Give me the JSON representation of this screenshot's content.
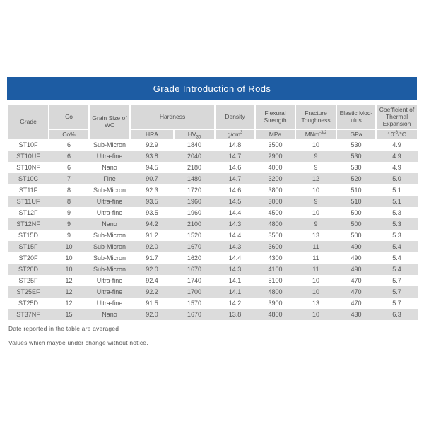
{
  "title": "Grade Introduction of Rods",
  "colors": {
    "title_bg": "#1D5CA3",
    "title_text": "#FFFFFF",
    "header_bg": "#D8D8D8",
    "row_stripe_bg": "#DCDCDC",
    "text": "#555555"
  },
  "table": {
    "header": {
      "grade": "Grade",
      "co": "Co",
      "co_unit": "Co%",
      "grain_size": "Grain Size of WC",
      "hardness": "Hardness",
      "hra": "HRA",
      "hv_base": "HV",
      "hv_sub": "30",
      "density": "Density",
      "density_unit_base": "g/cm",
      "density_unit_sup": "3",
      "flexural_strength": "Flexural Strength",
      "flexural_unit": "MPa",
      "fracture_toughness": "Fracture Toughness",
      "fracture_unit_base": "MNm",
      "fracture_unit_sup": "-3/2",
      "elastic_modulus": "Elastic Mod-ulus",
      "elastic_unit": "GPa",
      "thermal_expansion": "Coefficient of Thermal Expansion",
      "thermal_unit_base": "10",
      "thermal_unit_sup": "-6",
      "thermal_unit_rest": "/°C"
    },
    "column_keys": [
      "grade",
      "co",
      "grain-size",
      "hra",
      "hv30",
      "density",
      "flexural-strength",
      "fracture-toughness",
      "elastic-modulus",
      "thermal-expansion"
    ],
    "rows": [
      [
        "ST10F",
        "6",
        "Sub-Micron",
        "92.9",
        "1840",
        "14.8",
        "3500",
        "10",
        "530",
        "4.9"
      ],
      [
        "ST10UF",
        "6",
        "Ultra-fine",
        "93.8",
        "2040",
        "14.7",
        "2900",
        "9",
        "530",
        "4.9"
      ],
      [
        "ST10NF",
        "6",
        "Nano",
        "94.5",
        "2180",
        "14.6",
        "4000",
        "9",
        "530",
        "4.9"
      ],
      [
        "ST10C",
        "7",
        "Fine",
        "90.7",
        "1480",
        "14.7",
        "3200",
        "12",
        "520",
        "5.0"
      ],
      [
        "ST11F",
        "8",
        "Sub-Micron",
        "92.3",
        "1720",
        "14.6",
        "3800",
        "10",
        "510",
        "5.1"
      ],
      [
        "ST11UF",
        "8",
        "Ultra-fine",
        "93.5",
        "1960",
        "14.5",
        "3000",
        "9",
        "510",
        "5.1"
      ],
      [
        "ST12F",
        "9",
        "Ultra-fine",
        "93.5",
        "1960",
        "14.4",
        "4500",
        "10",
        "500",
        "5.3"
      ],
      [
        "ST12NF",
        "9",
        "Nano",
        "94.2",
        "2100",
        "14.3",
        "4800",
        "9",
        "500",
        "5.3"
      ],
      [
        "ST15D",
        "9",
        "Sub-Micron",
        "91.2",
        "1520",
        "14.4",
        "3500",
        "13",
        "500",
        "5.3"
      ],
      [
        "ST15F",
        "10",
        "Sub-Micron",
        "92.0",
        "1670",
        "14.3",
        "3600",
        "11",
        "490",
        "5.4"
      ],
      [
        "ST20F",
        "10",
        "Sub-Micron",
        "91.7",
        "1620",
        "14.4",
        "4300",
        "11",
        "490",
        "5.4"
      ],
      [
        "ST20D",
        "10",
        "Sub-Micron",
        "92.0",
        "1670",
        "14.3",
        "4100",
        "11",
        "490",
        "5.4"
      ],
      [
        "ST25F",
        "12",
        "Ultra-fine",
        "92.4",
        "1740",
        "14.1",
        "5100",
        "10",
        "470",
        "5.7"
      ],
      [
        "ST25EF",
        "12",
        "Ultra-fine",
        "92.2",
        "1700",
        "14.1",
        "4800",
        "10",
        "470",
        "5.7"
      ],
      [
        "ST25D",
        "12",
        "Ultra-fine",
        "91.5",
        "1570",
        "14.2",
        "3900",
        "13",
        "470",
        "5.7"
      ],
      [
        "ST37NF",
        "15",
        "Nano",
        "92.0",
        "1670",
        "13.8",
        "4800",
        "10",
        "430",
        "6.3"
      ]
    ]
  },
  "notes": [
    "Date reported in the table are averaged",
    "Values which maybe under change without notice."
  ]
}
